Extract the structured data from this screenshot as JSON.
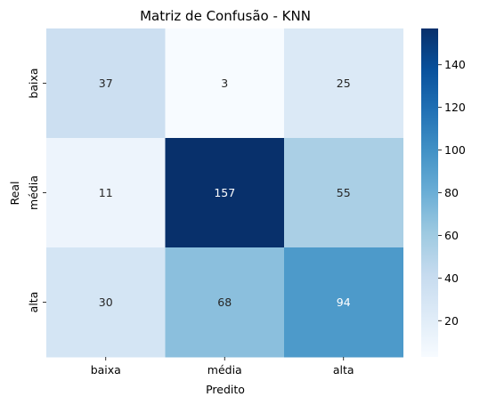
{
  "chart_data": {
    "type": "heatmap",
    "title": "Matriz de Confusão - KNN",
    "xlabel": "Predito",
    "ylabel": "Real",
    "x_categories": [
      "baixa",
      "média",
      "alta"
    ],
    "y_categories": [
      "baixa",
      "média",
      "alta"
    ],
    "values": [
      [
        37,
        3,
        25
      ],
      [
        11,
        157,
        55
      ],
      [
        30,
        68,
        94
      ]
    ],
    "colormap": "Blues",
    "vmin": 3,
    "vmax": 157,
    "colorbar_ticks": [
      20,
      40,
      60,
      80,
      100,
      120,
      140
    ],
    "colorbar_tick_labels": [
      "20",
      "40",
      "60",
      "80",
      "100",
      "120",
      "140"
    ]
  }
}
